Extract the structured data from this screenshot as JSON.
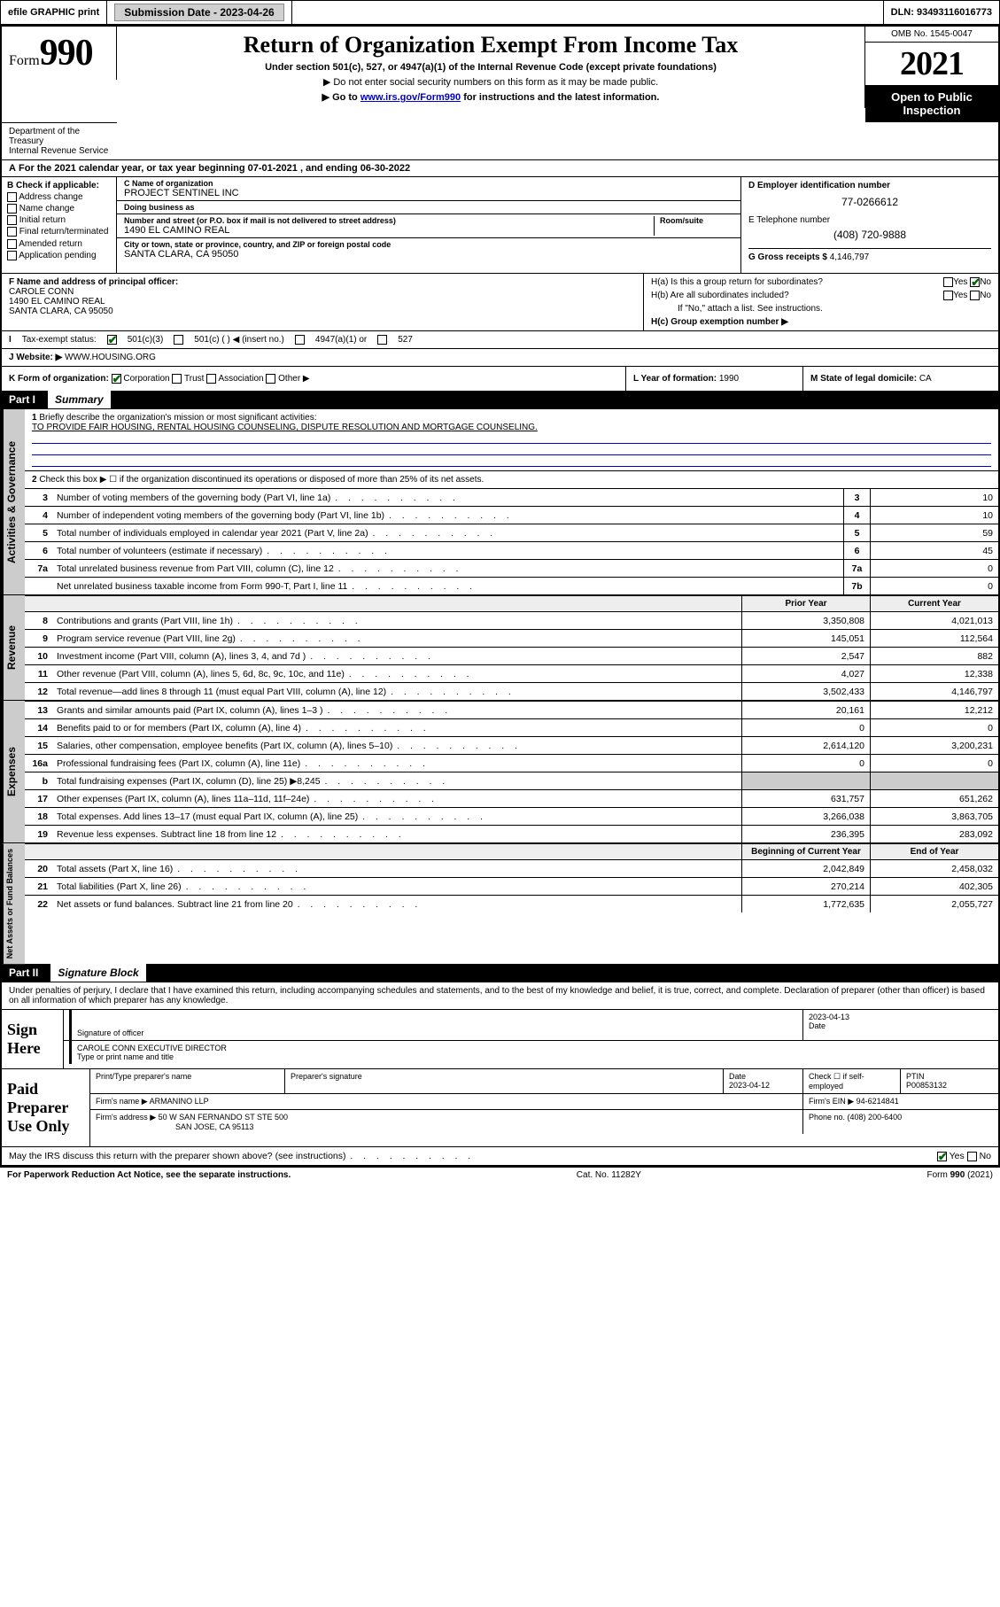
{
  "topbar": {
    "efile": "efile GRAPHIC print",
    "submission_label": "Submission Date - ",
    "submission_date": "2023-04-26",
    "dln_label": "DLN: ",
    "dln": "93493116016773"
  },
  "header": {
    "form_prefix": "Form",
    "form_number": "990",
    "title": "Return of Organization Exempt From Income Tax",
    "subtitle": "Under section 501(c), 527, or 4947(a)(1) of the Internal Revenue Code (except private foundations)",
    "note1": "▶ Do not enter social security numbers on this form as it may be made public.",
    "note2_pre": "▶ Go to ",
    "note2_link": "www.irs.gov/Form990",
    "note2_post": " for instructions and the latest information.",
    "omb": "OMB No. 1545-0047",
    "year": "2021",
    "inspection": "Open to Public Inspection",
    "dept": "Department of the Treasury\nInternal Revenue Service"
  },
  "period": {
    "a_label": "A",
    "text_pre": "For the 2021 calendar year, or tax year beginning ",
    "begin": "07-01-2021",
    "mid": " , and ending ",
    "end": "06-30-2022"
  },
  "section_b": {
    "label": "B Check if applicable:",
    "opts": [
      "Address change",
      "Name change",
      "Initial return",
      "Final return/terminated",
      "Amended return",
      "Application pending"
    ]
  },
  "section_c": {
    "name_lbl": "C Name of organization",
    "name": "PROJECT SENTINEL INC",
    "dba_lbl": "Doing business as",
    "dba": "",
    "street_lbl": "Number and street (or P.O. box if mail is not delivered to street address)",
    "room_lbl": "Room/suite",
    "street": "1490 EL CAMINO REAL",
    "city_lbl": "City or town, state or province, country, and ZIP or foreign postal code",
    "city": "SANTA CLARA, CA  95050"
  },
  "section_d": {
    "ein_lbl": "D Employer identification number",
    "ein": "77-0266612",
    "tel_lbl": "E Telephone number",
    "tel": "(408) 720-9888",
    "gross_lbl": "G Gross receipts $ ",
    "gross": "4,146,797"
  },
  "section_f": {
    "lbl": "F Name and address of principal officer:",
    "name": "CAROLE CONN",
    "street": "1490 EL CAMINO REAL",
    "city": "SANTA CLARA, CA  95050"
  },
  "section_h": {
    "ha": "H(a)  Is this a group return for subordinates?",
    "hb": "H(b)  Are all subordinates included?",
    "hb_note": "If \"No,\" attach a list. See instructions.",
    "hc": "H(c)  Group exemption number ▶",
    "yes": "Yes",
    "no": "No"
  },
  "section_i": {
    "lbl": "I",
    "text": "Tax-exempt status:",
    "opt1": "501(c)(3)",
    "opt2": "501(c) (   ) ◀ (insert no.)",
    "opt3": "4947(a)(1) or",
    "opt4": "527"
  },
  "section_j": {
    "lbl": "J",
    "text": "Website: ▶",
    "val": "WWW.HOUSING.ORG"
  },
  "section_k": {
    "lbl": "K Form of organization:",
    "opts": [
      "Corporation",
      "Trust",
      "Association",
      "Other ▶"
    ]
  },
  "section_l": {
    "lbl": "L Year of formation: ",
    "val": "1990"
  },
  "section_m": {
    "lbl": "M State of legal domicile: ",
    "val": "CA"
  },
  "part1": {
    "label": "Part I",
    "title": "Summary"
  },
  "summary": {
    "q1_lbl": "1",
    "q1": "Briefly describe the organization's mission or most significant activities:",
    "q1_val": "TO PROVIDE FAIR HOUSING, RENTAL HOUSING COUNSELING, DISPUTE RESOLUTION AND MORTGAGE COUNSELING.",
    "q2_lbl": "2",
    "q2": "Check this box ▶ ☐  if the organization discontinued its operations or disposed of more than 25% of its net assets.",
    "lines_single": [
      {
        "n": "3",
        "d": "Number of voting members of the governing body (Part VI, line 1a)",
        "box": "3",
        "v": "10"
      },
      {
        "n": "4",
        "d": "Number of independent voting members of the governing body (Part VI, line 1b)",
        "box": "4",
        "v": "10"
      },
      {
        "n": "5",
        "d": "Total number of individuals employed in calendar year 2021 (Part V, line 2a)",
        "box": "5",
        "v": "59"
      },
      {
        "n": "6",
        "d": "Total number of volunteers (estimate if necessary)",
        "box": "6",
        "v": "45"
      },
      {
        "n": "7a",
        "d": "Total unrelated business revenue from Part VIII, column (C), line 12",
        "box": "7a",
        "v": "0"
      },
      {
        "n": "",
        "d": "Net unrelated business taxable income from Form 990-T, Part I, line 11",
        "box": "7b",
        "v": "0"
      }
    ]
  },
  "fin_headers": {
    "prior": "Prior Year",
    "current": "Current Year",
    "begin": "Beginning of Current Year",
    "end": "End of Year"
  },
  "revenue": [
    {
      "n": "8",
      "d": "Contributions and grants (Part VIII, line 1h)",
      "p": "3,350,808",
      "c": "4,021,013"
    },
    {
      "n": "9",
      "d": "Program service revenue (Part VIII, line 2g)",
      "p": "145,051",
      "c": "112,564"
    },
    {
      "n": "10",
      "d": "Investment income (Part VIII, column (A), lines 3, 4, and 7d )",
      "p": "2,547",
      "c": "882"
    },
    {
      "n": "11",
      "d": "Other revenue (Part VIII, column (A), lines 5, 6d, 8c, 9c, 10c, and 11e)",
      "p": "4,027",
      "c": "12,338"
    },
    {
      "n": "12",
      "d": "Total revenue—add lines 8 through 11 (must equal Part VIII, column (A), line 12)",
      "p": "3,502,433",
      "c": "4,146,797"
    }
  ],
  "expenses": [
    {
      "n": "13",
      "d": "Grants and similar amounts paid (Part IX, column (A), lines 1–3 )",
      "p": "20,161",
      "c": "12,212"
    },
    {
      "n": "14",
      "d": "Benefits paid to or for members (Part IX, column (A), line 4)",
      "p": "0",
      "c": "0"
    },
    {
      "n": "15",
      "d": "Salaries, other compensation, employee benefits (Part IX, column (A), lines 5–10)",
      "p": "2,614,120",
      "c": "3,200,231"
    },
    {
      "n": "16a",
      "d": "Professional fundraising fees (Part IX, column (A), line 11e)",
      "p": "0",
      "c": "0"
    },
    {
      "n": "b",
      "d": "Total fundraising expenses (Part IX, column (D), line 25) ▶8,245",
      "p": "",
      "c": "",
      "shade": true
    },
    {
      "n": "17",
      "d": "Other expenses (Part IX, column (A), lines 11a–11d, 11f–24e)",
      "p": "631,757",
      "c": "651,262"
    },
    {
      "n": "18",
      "d": "Total expenses. Add lines 13–17 (must equal Part IX, column (A), line 25)",
      "p": "3,266,038",
      "c": "3,863,705"
    },
    {
      "n": "19",
      "d": "Revenue less expenses. Subtract line 18 from line 12",
      "p": "236,395",
      "c": "283,092"
    }
  ],
  "netassets": [
    {
      "n": "20",
      "d": "Total assets (Part X, line 16)",
      "p": "2,042,849",
      "c": "2,458,032"
    },
    {
      "n": "21",
      "d": "Total liabilities (Part X, line 26)",
      "p": "270,214",
      "c": "402,305"
    },
    {
      "n": "22",
      "d": "Net assets or fund balances. Subtract line 21 from line 20",
      "p": "1,772,635",
      "c": "2,055,727"
    }
  ],
  "vtabs": {
    "gov": "Activities & Governance",
    "rev": "Revenue",
    "exp": "Expenses",
    "net": "Net Assets or Fund Balances"
  },
  "part2": {
    "label": "Part II",
    "title": "Signature Block"
  },
  "sig_intro": "Under penalties of perjury, I declare that I have examined this return, including accompanying schedules and statements, and to the best of my knowledge and belief, it is true, correct, and complete. Declaration of preparer (other than officer) is based on all information of which preparer has any knowledge.",
  "sign_here": {
    "label": "Sign Here",
    "sig_lbl": "Signature of officer",
    "date_lbl": "Date",
    "date": "2023-04-13",
    "name": "CAROLE CONN  EXECUTIVE DIRECTOR",
    "name_lbl": "Type or print name and title"
  },
  "preparer": {
    "label": "Paid Preparer Use Only",
    "col1": "Print/Type preparer's name",
    "col2": "Preparer's signature",
    "col3": "Date",
    "date": "2023-04-12",
    "col4": "Check ☐ if self-employed",
    "col5_lbl": "PTIN",
    "ptin": "P00853132",
    "firm_lbl": "Firm's name    ▶",
    "firm": "ARMANINO LLP",
    "ein_lbl": "Firm's EIN ▶",
    "ein": "94-6214841",
    "addr_lbl": "Firm's address ▶",
    "addr1": "50 W SAN FERNANDO ST STE 500",
    "addr2": "SAN JOSE, CA  95113",
    "phone_lbl": "Phone no. ",
    "phone": "(408) 200-6400"
  },
  "discuss": {
    "text": "May the IRS discuss this return with the preparer shown above? (see instructions)",
    "yes": "Yes",
    "no": "No"
  },
  "footer": {
    "left": "For Paperwork Reduction Act Notice, see the separate instructions.",
    "mid": "Cat. No. 11282Y",
    "right_pre": "Form ",
    "right_form": "990",
    "right_post": " (2021)"
  },
  "colors": {
    "link": "#0000cc",
    "check": "#006600",
    "shade": "#cccccc"
  }
}
